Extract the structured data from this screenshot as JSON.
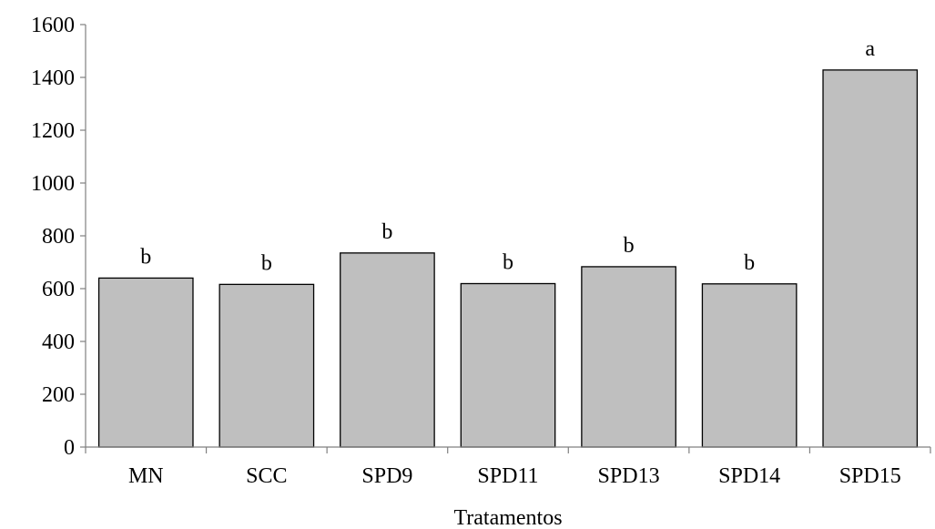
{
  "chart_data": {
    "type": "bar",
    "title": "",
    "xlabel": "Tratamentos",
    "ylabel": "",
    "categories": [
      "MN",
      "SCC",
      "SPD9",
      "SPD11",
      "SPD13",
      "SPD14",
      "SPD15"
    ],
    "values": [
      640,
      616,
      735,
      619,
      683,
      618,
      1428
    ],
    "significance_letters": [
      "b",
      "b",
      "b",
      "b",
      "b",
      "b",
      "a"
    ],
    "ylim": [
      0,
      1600
    ],
    "yticks": [
      0,
      200,
      400,
      600,
      800,
      1000,
      1200,
      1400,
      1600
    ],
    "grid": false,
    "legend": "none",
    "colors": {
      "bar_fill": "#bfbfbf",
      "bar_stroke": "#000000",
      "axis": "#808080"
    }
  }
}
